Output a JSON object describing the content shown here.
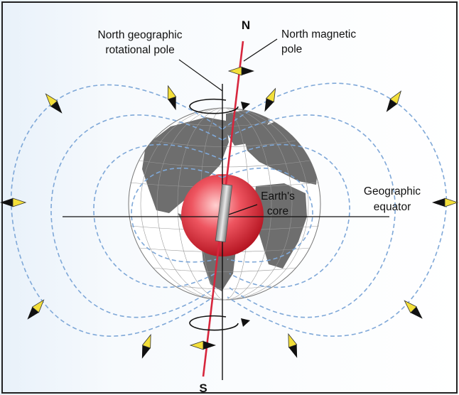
{
  "labels": {
    "north_geographic_line1": "North geographic",
    "north_geographic_line2": "rotational pole",
    "north_magnetic_line1": "North magnetic",
    "north_magnetic_line2": "pole",
    "core_line1": "Earth's",
    "core_line2": "core",
    "equator_line1": "Geographic",
    "equator_line2": "equator",
    "north": "N",
    "south": "S"
  },
  "colors": {
    "field_line": "#7fa8d8",
    "magnetic_axis": "#d7263d",
    "compass_yellow": "#f3df3a",
    "compass_black": "#111111",
    "core": "#e2444f",
    "background_left": "#eaf3fb"
  },
  "icons": {
    "compass_needle": "compass-needle-icon",
    "rotation_arrow": "rotation-arrow-icon",
    "bar_magnet": "bar-magnet-icon"
  }
}
